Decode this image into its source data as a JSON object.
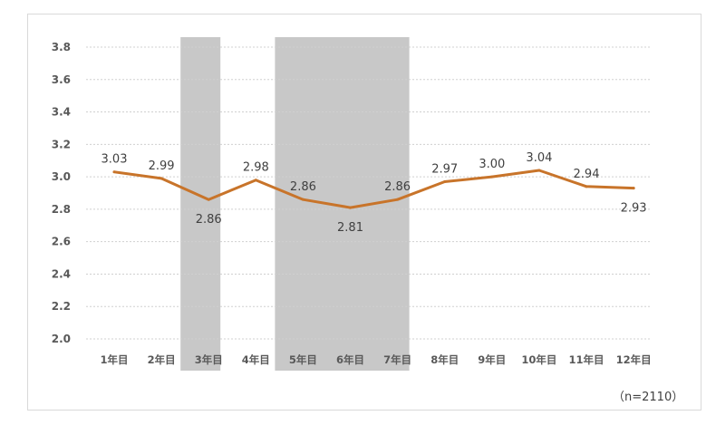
{
  "chart_data": {
    "type": "line",
    "categories": [
      "1年目",
      "2年目",
      "3年目",
      "4年目",
      "5年目",
      "6年目",
      "7年目",
      "8年目",
      "9年目",
      "10年目",
      "11年目",
      "12年目"
    ],
    "series": [
      {
        "values": [
          3.03,
          2.99,
          2.86,
          2.98,
          2.86,
          2.81,
          2.86,
          2.97,
          3.0,
          3.04,
          2.94,
          2.93
        ]
      }
    ],
    "y_ticks": [
      "2.0",
      "2.2",
      "2.4",
      "2.6",
      "2.8",
      "3.0",
      "3.2",
      "3.4",
      "3.6",
      "3.8"
    ],
    "ylim": [
      2.0,
      3.8
    ],
    "grid": true,
    "highlighted_categories": [
      "3年目",
      "5年目",
      "6年目",
      "7年目"
    ],
    "colors": {
      "line": "#C8742A",
      "highlight": "#C8C8C8",
      "grid": "#d0d0d0"
    },
    "note": "（n=2110）"
  }
}
